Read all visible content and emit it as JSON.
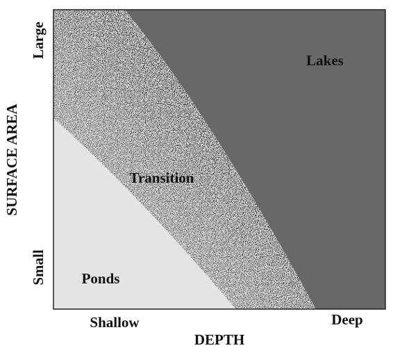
{
  "regions": {
    "deep": "Lakes",
    "middle": "Transition",
    "shallow": "Ponds"
  },
  "x_axis": {
    "title": "DEPTH",
    "low": "Shallow",
    "high": "Deep"
  },
  "y_axis": {
    "title": "SURFACE AREA",
    "low": "Small",
    "high": "Large"
  }
}
